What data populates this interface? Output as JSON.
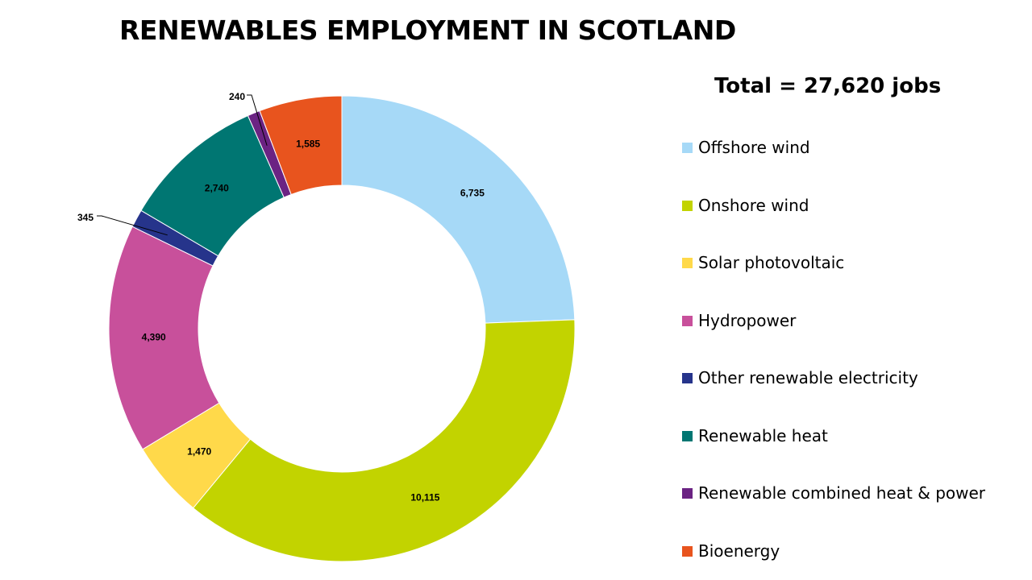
{
  "title": "RENEWABLES EMPLOYMENT IN SCOTLAND",
  "total_label": "Total = 27,620 jobs",
  "chart_data": {
    "type": "pie",
    "variant": "donut",
    "title": "RENEWABLES EMPLOYMENT IN SCOTLAND",
    "total": 27620,
    "legend_placement": "right",
    "slices": [
      {
        "name": "Offshore wind",
        "value": 6735,
        "label": "6,735",
        "color": "#a6d9f7"
      },
      {
        "name": "Onshore wind",
        "value": 10115,
        "label": "10,115",
        "color": "#c2d300"
      },
      {
        "name": "Solar photovoltaic",
        "value": 1470,
        "label": "1,470",
        "color": "#ffd94a"
      },
      {
        "name": "Hydropower",
        "value": 4390,
        "label": "4,390",
        "color": "#c8509b"
      },
      {
        "name": "Other renewable electricity",
        "value": 345,
        "label": "345",
        "color": "#26348b"
      },
      {
        "name": "Renewable heat",
        "value": 2740,
        "label": "2,740",
        "color": "#007672"
      },
      {
        "name": "Renewable combined heat & power",
        "value": 240,
        "label": "240",
        "color": "#6b2383"
      },
      {
        "name": "Bioenergy",
        "value": 1585,
        "label": "1,585",
        "color": "#e8541e"
      }
    ]
  }
}
